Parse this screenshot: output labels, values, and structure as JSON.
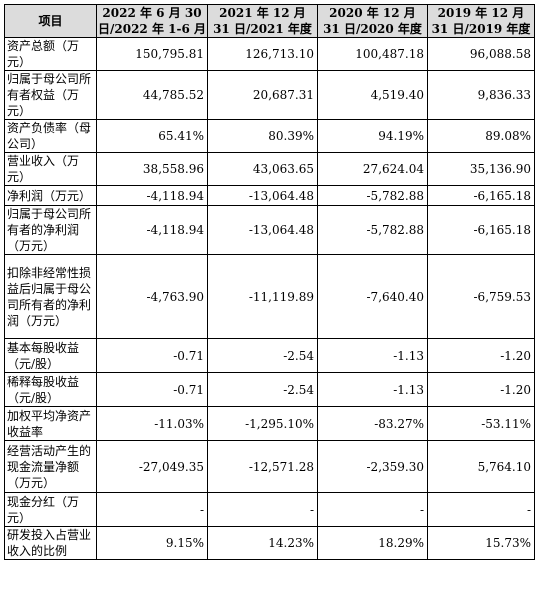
{
  "table": {
    "headers": [
      "项目",
      "2022 年 6 月 30 日/2022 年 1-6 月",
      "2021 年 12 月 31 日/2021 年度",
      "2020 年 12 月 31 日/2020 年度",
      "2019 年 12 月 31 日/2019 年度"
    ],
    "rows": [
      {
        "label": "资产总额（万元）",
        "values": [
          "150,795.81",
          "126,713.10",
          "100,487.18",
          "96,088.58"
        ]
      },
      {
        "label": "归属于母公司所有者权益（万元）",
        "values": [
          "44,785.52",
          "20,687.31",
          "4,519.40",
          "9,836.33"
        ]
      },
      {
        "label": "资产负债率（母公司）",
        "values": [
          "65.41%",
          "80.39%",
          "94.19%",
          "89.08%"
        ]
      },
      {
        "label": "营业收入（万元）",
        "values": [
          "38,558.96",
          "43,063.65",
          "27,624.04",
          "35,136.90"
        ]
      },
      {
        "label": "净利润（万元）",
        "values": [
          "-4,118.94",
          "-13,064.48",
          "-5,782.88",
          "-6,165.18"
        ]
      },
      {
        "label": "归属于母公司所有者的净利润（万元）",
        "values": [
          "-4,118.94",
          "-13,064.48",
          "-5,782.88",
          "-6,165.18"
        ]
      },
      {
        "label": "扣除非经常性损益后归属于母公司所有者的净利润（万元）",
        "values": [
          "-4,763.90",
          "-11,119.89",
          "-7,640.40",
          "-6,759.53"
        ]
      },
      {
        "label": "基本每股收益（元/股）",
        "values": [
          "-0.71",
          "-2.54",
          "-1.13",
          "-1.20"
        ]
      },
      {
        "label": "稀释每股收益（元/股）",
        "values": [
          "-0.71",
          "-2.54",
          "-1.13",
          "-1.20"
        ]
      },
      {
        "label": "加权平均净资产收益率",
        "values": [
          "-11.03%",
          "-1,295.10%",
          "-83.27%",
          "-53.11%"
        ]
      },
      {
        "label": "经营活动产生的现金流量净额（万元）",
        "values": [
          "-27,049.35",
          "-12,571.28",
          "-2,359.30",
          "5,764.10"
        ]
      },
      {
        "label": "现金分红（万元）",
        "values": [
          "-",
          "-",
          "-",
          "-"
        ]
      },
      {
        "label": "研发投入占营业收入的比例",
        "values": [
          "9.15%",
          "14.23%",
          "18.29%",
          "15.73%"
        ]
      }
    ]
  }
}
